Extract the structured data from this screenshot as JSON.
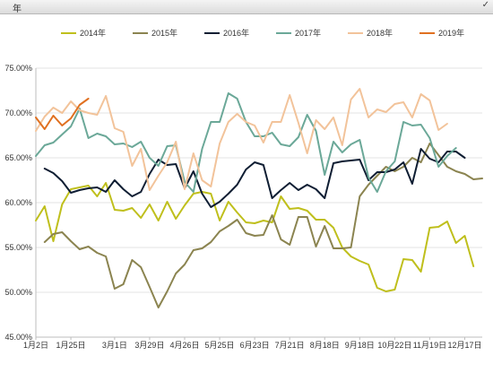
{
  "filter": {
    "field_label": "年",
    "confirm_icon": "check-icon"
  },
  "chart_data": {
    "type": "line",
    "title": "",
    "xlabel": "",
    "ylabel": "",
    "ylim": [
      0.45,
      0.75
    ],
    "y_ticks": [
      0.45,
      0.5,
      0.55,
      0.6,
      0.65,
      0.7,
      0.75
    ],
    "y_tick_labels": [
      "45.00%",
      "50.00%",
      "55.00%",
      "60.00%",
      "65.00%",
      "70.00%",
      "75.00%"
    ],
    "x_tick_labels": [
      "1月2日",
      "1月25日",
      "3月1日",
      "3月29日",
      "4月26日",
      "5月25日",
      "6月23日",
      "7月21日",
      "8月18日",
      "9月18日",
      "10月22日",
      "11月19日",
      "12月17日"
    ],
    "x_tick_positions": [
      0,
      4,
      9,
      13,
      17,
      21,
      25,
      29,
      33,
      37,
      41,
      45,
      49
    ],
    "grid": true,
    "legend_position": "top",
    "series": [
      {
        "name": "2014年",
        "color": "#bfbf1c",
        "x_start": 0,
        "values": [
          0.58,
          0.596,
          0.557,
          0.598,
          0.615,
          0.617,
          0.619,
          0.607,
          0.622,
          0.592,
          0.591,
          0.594,
          0.583,
          0.598,
          0.58,
          0.601,
          0.582,
          0.597,
          0.61,
          0.612,
          0.61,
          0.58,
          0.601,
          0.589,
          0.578,
          0.577,
          0.58,
          0.578,
          0.607,
          0.593,
          0.594,
          0.591,
          0.581,
          0.581,
          0.572,
          0.55,
          0.54,
          0.535,
          0.531,
          0.505,
          0.501,
          0.503,
          0.537,
          0.536,
          0.523,
          0.572,
          0.573,
          0.579,
          0.555,
          0.563,
          0.529
        ]
      },
      {
        "name": "2015年",
        "color": "#8b8450",
        "x_start": 1,
        "values": [
          0.556,
          0.565,
          0.567,
          0.557,
          0.548,
          0.551,
          0.544,
          0.54,
          0.504,
          0.509,
          0.536,
          0.528,
          0.506,
          0.483,
          0.501,
          0.521,
          0.531,
          0.547,
          0.549,
          0.556,
          0.568,
          0.574,
          0.581,
          0.566,
          0.563,
          0.564,
          0.586,
          0.559,
          0.553,
          0.584,
          0.584,
          0.551,
          0.574,
          0.549,
          0.549,
          0.55,
          0.607,
          0.62,
          0.63,
          0.64,
          0.635,
          0.64,
          0.65,
          0.645,
          0.666,
          0.653,
          0.64,
          0.635,
          0.632,
          0.626,
          0.627
        ]
      },
      {
        "name": "2016年",
        "color": "#0f1e33",
        "x_start": 1,
        "values": [
          0.638,
          0.633,
          0.624,
          0.611,
          0.614,
          0.616,
          0.617,
          0.612,
          0.625,
          0.615,
          0.607,
          0.612,
          0.632,
          0.648,
          0.642,
          0.643,
          0.616,
          0.635,
          0.61,
          0.595,
          0.601,
          0.61,
          0.62,
          0.637,
          0.645,
          0.642,
          0.605,
          0.614,
          0.622,
          0.614,
          0.62,
          0.615,
          0.605,
          0.644,
          0.646,
          0.647,
          0.648,
          0.625,
          0.634,
          0.634,
          0.637,
          0.645,
          0.621,
          0.66,
          0.649,
          0.645,
          0.657,
          0.657,
          0.65
        ]
      },
      {
        "name": "2017年",
        "color": "#6ba898",
        "x_start": 0,
        "values": [
          0.652,
          0.664,
          0.667,
          0.676,
          0.685,
          0.705,
          0.672,
          0.677,
          0.674,
          0.665,
          0.666,
          0.662,
          0.668,
          0.65,
          0.641,
          0.663,
          0.664,
          0.623,
          0.612,
          0.66,
          0.69,
          0.69,
          0.722,
          0.716,
          0.69,
          0.674,
          0.674,
          0.678,
          0.665,
          0.663,
          0.673,
          0.698,
          0.68,
          0.631,
          0.668,
          0.656,
          0.665,
          0.67,
          0.628,
          0.612,
          0.635,
          0.646,
          0.69,
          0.686,
          0.687,
          0.672,
          0.64,
          0.652,
          0.661
        ]
      },
      {
        "name": "2018年",
        "color": "#f2c39a",
        "x_start": 0,
        "values": [
          0.68,
          0.696,
          0.706,
          0.7,
          0.713,
          0.703,
          0.7,
          0.698,
          0.719,
          0.683,
          0.679,
          0.641,
          0.66,
          0.614,
          0.63,
          0.645,
          0.668,
          0.615,
          0.655,
          0.625,
          0.618,
          0.666,
          0.69,
          0.699,
          0.69,
          0.686,
          0.667,
          0.69,
          0.69,
          0.72,
          0.689,
          0.655,
          0.692,
          0.682,
          0.695,
          0.664,
          0.715,
          0.727,
          0.695,
          0.704,
          0.701,
          0.71,
          0.712,
          0.695,
          0.721,
          0.714,
          0.681,
          0.688
        ]
      },
      {
        "name": "2019年",
        "color": "#e07020",
        "x_start": 0,
        "values": [
          0.695,
          0.682,
          0.697,
          0.686,
          0.694,
          0.709,
          0.716
        ]
      }
    ]
  }
}
